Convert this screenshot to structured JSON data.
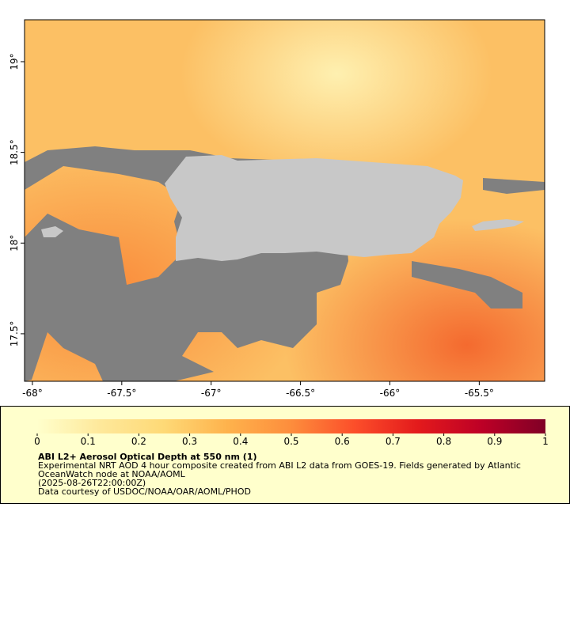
{
  "map": {
    "xlim": [
      -68.044,
      -65.134
    ],
    "ylim": [
      17.238,
      19.231
    ],
    "xticks": [
      {
        "value": -68,
        "label": "-68°"
      },
      {
        "value": -67.5,
        "label": "-67.5°"
      },
      {
        "value": -67,
        "label": "-67°"
      },
      {
        "value": -66.5,
        "label": "-66.5°"
      },
      {
        "value": -66,
        "label": "-66°"
      },
      {
        "value": -65.5,
        "label": "-65.5°"
      }
    ],
    "yticks": [
      {
        "value": 17.5,
        "label": "17.5°"
      },
      {
        "value": 18,
        "label": "18°"
      },
      {
        "value": 18.5,
        "label": "18.5°"
      },
      {
        "value": 19,
        "label": "19°"
      }
    ]
  },
  "colorbar": {
    "clim": [
      0,
      1
    ],
    "ticks": [
      0,
      0.1,
      0.2,
      0.3,
      0.4,
      0.5,
      0.6,
      0.7,
      0.8,
      0.9,
      1
    ],
    "colormap": [
      "#ffffcc",
      "#fee89a",
      "#fed976",
      "#feb24c",
      "#fd8d3c",
      "#fc4e2a",
      "#e31a1c",
      "#bd0026",
      "#800026"
    ],
    "title": "ABI L2+ Aerosol Optical Depth at 550 nm (1)",
    "description": [
      "Experimental NRT AOD 4 hour composite created from ABI L2 data from GOES-19. Fields generated by Atlantic",
      "OceanWatch node at NOAA/AOML",
      "(2025-08-26T22:00:00Z)",
      "Data courtesy of USDOC/NOAA/OAR/AOML/PHOD"
    ]
  }
}
